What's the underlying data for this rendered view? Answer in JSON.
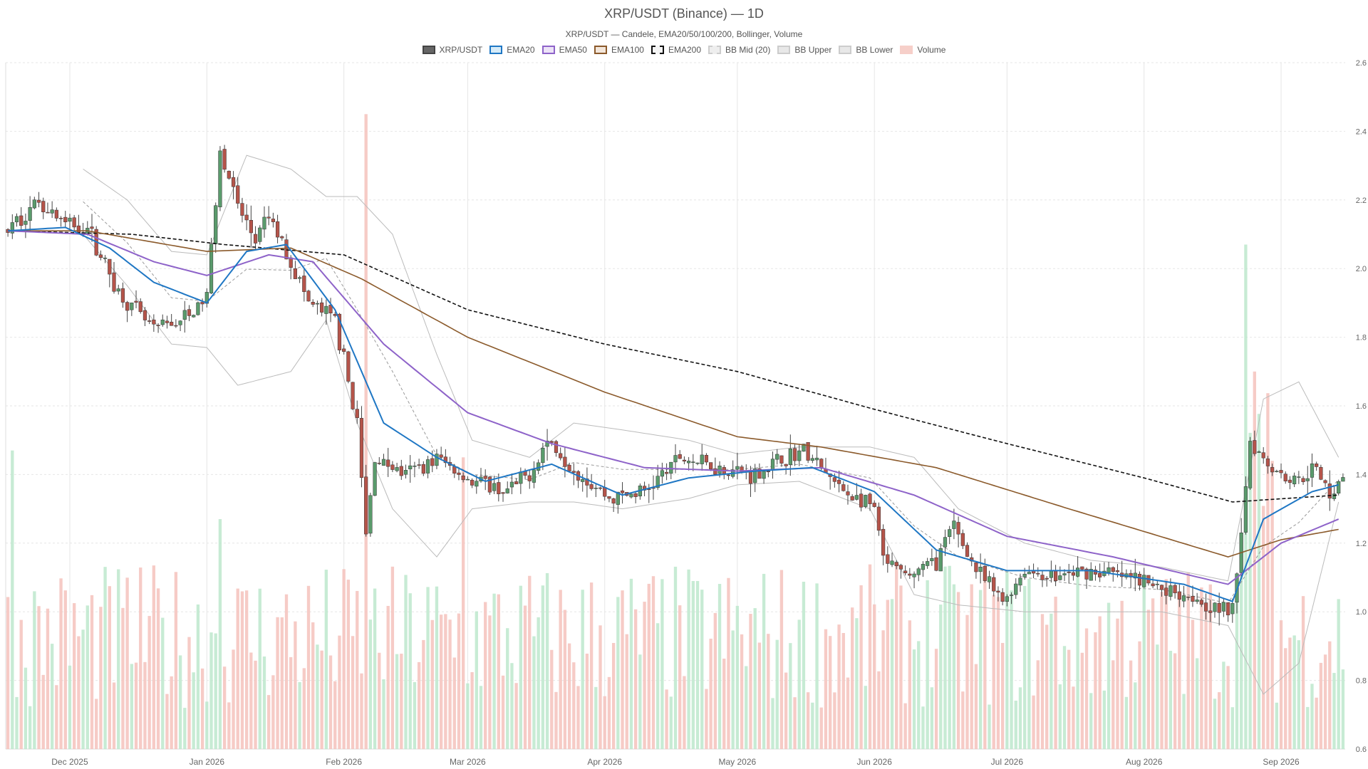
{
  "title": "XRP/USDT (Binance) — 1D",
  "subtitle": "XRP/USDT — Candele, EMA20/50/100/200, Bollinger, Volume",
  "legend": [
    {
      "label": "XRP/USDT",
      "fill": "#666666",
      "stroke": "#444444",
      "dashed": false
    },
    {
      "label": "EMA20",
      "fill": "#d6ebf8",
      "stroke": "#1f77c4",
      "dashed": false
    },
    {
      "label": "EMA50",
      "fill": "#ece3f7",
      "stroke": "#8e63c9",
      "dashed": false
    },
    {
      "label": "EMA100",
      "fill": "#f3e6da",
      "stroke": "#8b5a2b",
      "dashed": false
    },
    {
      "label": "EMA200",
      "fill": "#f5f5f5",
      "stroke": "#111111",
      "dashed": true
    },
    {
      "label": "BB Mid (20)",
      "fill": "#eeeeee",
      "stroke": "#cccccc",
      "dashed": true
    },
    {
      "label": "BB Upper",
      "fill": "#e8e8e8",
      "stroke": "#cccccc",
      "dashed": false
    },
    {
      "label": "BB Lower",
      "fill": "#e8e8e8",
      "stroke": "#cccccc",
      "dashed": false
    },
    {
      "label": "Volume",
      "fill": "#f6cfc9",
      "stroke": "#f6cfc9",
      "dashed": false
    }
  ],
  "colors": {
    "up": "#5a9b6c",
    "down": "#b5544a",
    "wick": "#444444",
    "volume_up": "#bde8cd",
    "volume_down": "#f4c2bc",
    "ema20": "#1f77c4",
    "ema50": "#8e63c9",
    "ema100": "#8b5a2b",
    "ema200": "#111111",
    "bb_band": "#bbbbbb",
    "bb_mid": "#999999",
    "grid": "#e6e6e6",
    "axis_text": "#666666"
  },
  "chart_data": {
    "type": "candlestick",
    "symbol": "XRP/USDT",
    "exchange": "Binance",
    "timeframe": "1D",
    "y_axis": {
      "side": "right",
      "range": [
        0.6,
        2.6
      ],
      "ticks": [
        0.6,
        0.8,
        1.0,
        1.2,
        1.4,
        1.6,
        1.8,
        2.0,
        2.2,
        2.4,
        2.6
      ]
    },
    "x_axis": {
      "range": [
        "2025-11-17",
        "2026-09-15"
      ],
      "ticks": [
        {
          "label": "Dec 2025",
          "date": "2025-12-01"
        },
        {
          "label": "Jan 2026",
          "date": "2026-01-01"
        },
        {
          "label": "Feb 2026",
          "date": "2026-02-01"
        },
        {
          "label": "Mar 2026",
          "date": "2026-03-01"
        },
        {
          "label": "Apr 2026",
          "date": "2026-04-01"
        },
        {
          "label": "May 2026",
          "date": "2026-05-01"
        },
        {
          "label": "Jun 2026",
          "date": "2026-06-01"
        },
        {
          "label": "Jul 2026",
          "date": "2026-07-01"
        },
        {
          "label": "Aug 2026",
          "date": "2026-08-01"
        },
        {
          "label": "Sep 2026",
          "date": "2026-09-01"
        }
      ]
    },
    "grid": true,
    "legend_position": "top-center",
    "price_anchors": [
      [
        "2025-11-17",
        2.11
      ],
      [
        "2025-11-24",
        2.2
      ],
      [
        "2025-11-30",
        2.13
      ],
      [
        "2025-12-05",
        2.12
      ],
      [
        "2025-12-12",
        1.93
      ],
      [
        "2025-12-20",
        1.82
      ],
      [
        "2025-12-28",
        1.86
      ],
      [
        "2026-01-01",
        1.92
      ],
      [
        "2026-01-04",
        2.35
      ],
      [
        "2026-01-08",
        2.18
      ],
      [
        "2026-01-12",
        2.08
      ],
      [
        "2026-01-15",
        2.15
      ],
      [
        "2026-01-19",
        2.05
      ],
      [
        "2026-01-24",
        1.9
      ],
      [
        "2026-01-30",
        1.85
      ],
      [
        "2026-02-04",
        1.55
      ],
      [
        "2026-02-06",
        1.22
      ],
      [
        "2026-02-08",
        1.45
      ],
      [
        "2026-02-15",
        1.4
      ],
      [
        "2026-02-22",
        1.45
      ],
      [
        "2026-03-02",
        1.38
      ],
      [
        "2026-03-10",
        1.35
      ],
      [
        "2026-03-15",
        1.4
      ],
      [
        "2026-03-19",
        1.5
      ],
      [
        "2026-03-25",
        1.42
      ],
      [
        "2026-04-02",
        1.33
      ],
      [
        "2026-04-10",
        1.35
      ],
      [
        "2026-04-18",
        1.45
      ],
      [
        "2026-04-27",
        1.42
      ],
      [
        "2026-05-05",
        1.4
      ],
      [
        "2026-05-12",
        1.45
      ],
      [
        "2026-05-16",
        1.47
      ],
      [
        "2026-05-24",
        1.36
      ],
      [
        "2026-06-01",
        1.3
      ],
      [
        "2026-06-03",
        1.15
      ],
      [
        "2026-06-08",
        1.1
      ],
      [
        "2026-06-15",
        1.15
      ],
      [
        "2026-06-19",
        1.25
      ],
      [
        "2026-06-24",
        1.12
      ],
      [
        "2026-06-30",
        1.03
      ],
      [
        "2026-07-05",
        1.12
      ],
      [
        "2026-07-12",
        1.1
      ],
      [
        "2026-07-20",
        1.12
      ],
      [
        "2026-07-28",
        1.1
      ],
      [
        "2026-08-05",
        1.07
      ],
      [
        "2026-08-12",
        1.05
      ],
      [
        "2026-08-17",
        1.01
      ],
      [
        "2026-08-21",
        1.0
      ],
      [
        "2026-08-23",
        1.25
      ],
      [
        "2026-08-25",
        1.5
      ],
      [
        "2026-08-30",
        1.42
      ],
      [
        "2026-09-04",
        1.38
      ],
      [
        "2026-09-08",
        1.42
      ],
      [
        "2026-09-12",
        1.35
      ],
      [
        "2026-09-14",
        1.38
      ]
    ],
    "ema20": [
      [
        "2025-11-17",
        2.11
      ],
      [
        "2025-11-30",
        2.12
      ],
      [
        "2025-12-10",
        2.06
      ],
      [
        "2025-12-20",
        1.96
      ],
      [
        "2026-01-01",
        1.9
      ],
      [
        "2026-01-10",
        2.05
      ],
      [
        "2026-01-19",
        2.07
      ],
      [
        "2026-01-30",
        1.88
      ],
      [
        "2026-02-10",
        1.55
      ],
      [
        "2026-02-22",
        1.45
      ],
      [
        "2026-03-05",
        1.38
      ],
      [
        "2026-03-20",
        1.43
      ],
      [
        "2026-04-05",
        1.34
      ],
      [
        "2026-04-20",
        1.39
      ],
      [
        "2026-05-05",
        1.41
      ],
      [
        "2026-05-18",
        1.42
      ],
      [
        "2026-06-01",
        1.35
      ],
      [
        "2026-06-15",
        1.18
      ],
      [
        "2026-07-01",
        1.12
      ],
      [
        "2026-07-20",
        1.12
      ],
      [
        "2026-08-10",
        1.08
      ],
      [
        "2026-08-21",
        1.03
      ],
      [
        "2026-08-28",
        1.27
      ],
      [
        "2026-09-08",
        1.35
      ],
      [
        "2026-09-14",
        1.37
      ]
    ],
    "ema50": [
      [
        "2025-11-17",
        2.11
      ],
      [
        "2025-12-05",
        2.1
      ],
      [
        "2025-12-20",
        2.02
      ],
      [
        "2026-01-01",
        1.98
      ],
      [
        "2026-01-15",
        2.04
      ],
      [
        "2026-01-25",
        2.02
      ],
      [
        "2026-02-10",
        1.78
      ],
      [
        "2026-03-01",
        1.58
      ],
      [
        "2026-03-20",
        1.49
      ],
      [
        "2026-04-10",
        1.42
      ],
      [
        "2026-05-01",
        1.41
      ],
      [
        "2026-05-20",
        1.42
      ],
      [
        "2026-06-10",
        1.34
      ],
      [
        "2026-07-01",
        1.22
      ],
      [
        "2026-07-25",
        1.16
      ],
      [
        "2026-08-20",
        1.08
      ],
      [
        "2026-09-01",
        1.2
      ],
      [
        "2026-09-14",
        1.27
      ]
    ],
    "ema100": [
      [
        "2025-11-17",
        2.11
      ],
      [
        "2025-12-05",
        2.11
      ],
      [
        "2026-01-01",
        2.05
      ],
      [
        "2026-01-20",
        2.06
      ],
      [
        "2026-02-05",
        1.97
      ],
      [
        "2026-03-01",
        1.8
      ],
      [
        "2026-04-01",
        1.64
      ],
      [
        "2026-05-01",
        1.51
      ],
      [
        "2026-05-20",
        1.48
      ],
      [
        "2026-06-15",
        1.42
      ],
      [
        "2026-07-15",
        1.3
      ],
      [
        "2026-08-20",
        1.16
      ],
      [
        "2026-09-01",
        1.21
      ],
      [
        "2026-09-14",
        1.24
      ]
    ],
    "ema200": [
      [
        "2025-11-17",
        2.11
      ],
      [
        "2025-12-15",
        2.1
      ],
      [
        "2026-01-05",
        2.07
      ],
      [
        "2026-02-01",
        2.04
      ],
      [
        "2026-03-01",
        1.88
      ],
      [
        "2026-04-01",
        1.78
      ],
      [
        "2026-05-01",
        1.7
      ],
      [
        "2026-06-01",
        1.59
      ],
      [
        "2026-07-01",
        1.49
      ],
      [
        "2026-08-01",
        1.39
      ],
      [
        "2026-08-21",
        1.32
      ],
      [
        "2026-09-14",
        1.34
      ]
    ],
    "bb_upper": [
      [
        "2025-12-04",
        2.29
      ],
      [
        "2025-12-14",
        2.2
      ],
      [
        "2025-12-24",
        2.05
      ],
      [
        "2026-01-01",
        2.04
      ],
      [
        "2026-01-10",
        2.33
      ],
      [
        "2026-01-20",
        2.29
      ],
      [
        "2026-01-28",
        2.21
      ],
      [
        "2026-02-04",
        2.21
      ],
      [
        "2026-02-12",
        2.1
      ],
      [
        "2026-02-22",
        1.75
      ],
      [
        "2026-03-02",
        1.5
      ],
      [
        "2026-03-15",
        1.45
      ],
      [
        "2026-03-25",
        1.55
      ],
      [
        "2026-04-05",
        1.53
      ],
      [
        "2026-04-20",
        1.5
      ],
      [
        "2026-05-01",
        1.46
      ],
      [
        "2026-05-15",
        1.48
      ],
      [
        "2026-05-31",
        1.48
      ],
      [
        "2026-06-10",
        1.45
      ],
      [
        "2026-06-20",
        1.3
      ],
      [
        "2026-07-05",
        1.2
      ],
      [
        "2026-07-20",
        1.15
      ],
      [
        "2026-08-05",
        1.13
      ],
      [
        "2026-08-20",
        1.09
      ],
      [
        "2026-08-28",
        1.62
      ],
      [
        "2026-09-05",
        1.67
      ],
      [
        "2026-09-14",
        1.45
      ]
    ],
    "bb_lower": [
      [
        "2025-12-04",
        2.1
      ],
      [
        "2025-12-14",
        1.95
      ],
      [
        "2025-12-24",
        1.78
      ],
      [
        "2026-01-01",
        1.77
      ],
      [
        "2026-01-08",
        1.66
      ],
      [
        "2026-01-20",
        1.7
      ],
      [
        "2026-01-28",
        1.85
      ],
      [
        "2026-02-04",
        1.55
      ],
      [
        "2026-02-12",
        1.3
      ],
      [
        "2026-02-22",
        1.16
      ],
      [
        "2026-03-02",
        1.3
      ],
      [
        "2026-03-15",
        1.32
      ],
      [
        "2026-03-25",
        1.32
      ],
      [
        "2026-04-05",
        1.3
      ],
      [
        "2026-04-20",
        1.33
      ],
      [
        "2026-05-01",
        1.37
      ],
      [
        "2026-05-15",
        1.38
      ],
      [
        "2026-05-31",
        1.3
      ],
      [
        "2026-06-10",
        1.05
      ],
      [
        "2026-06-20",
        1.02
      ],
      [
        "2026-07-05",
        1.0
      ],
      [
        "2026-07-20",
        1.0
      ],
      [
        "2026-08-05",
        1.0
      ],
      [
        "2026-08-20",
        0.96
      ],
      [
        "2026-08-28",
        0.76
      ],
      [
        "2026-09-05",
        0.85
      ],
      [
        "2026-09-14",
        1.32
      ]
    ],
    "volume_peaks": [
      [
        "2026-02-06",
        2.45
      ],
      [
        "2026-08-24",
        2.07
      ],
      [
        "2026-08-26",
        1.7
      ],
      [
        "2026-01-04",
        1.27
      ],
      [
        "2025-11-18",
        1.47
      ],
      [
        "2026-06-19",
        1.08
      ],
      [
        "2026-02-28",
        1.45
      ]
    ]
  }
}
